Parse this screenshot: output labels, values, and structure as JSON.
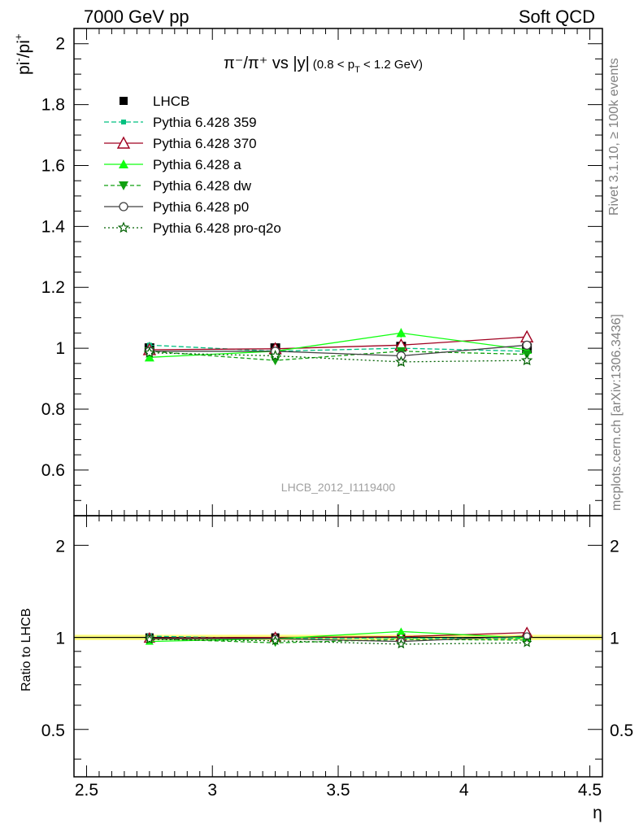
{
  "header": {
    "left": "7000 GeV pp",
    "right": "Soft QCD"
  },
  "side_labels": {
    "rivet": "Rivet 3.1.10, ≥ 100k events",
    "mcplots": "mcplots.cern.ch [arXiv:1306.3436]"
  },
  "watermark": "LHCB_2012_I1119400",
  "title": {
    "main": "π⁻/π⁺ vs |y|",
    "range_open": "(0.8 < p",
    "range_sub": "T",
    "range_close": " < 1.2 GeV)"
  },
  "ylabel": {
    "base1": "pi",
    "sup1": "-",
    "slash": "/pi",
    "sup2": "+"
  },
  "ratio_ylabel": "Ratio to LHCB",
  "xlabel": "η",
  "chart_data": [
    {
      "type": "line",
      "panel": "main",
      "x": [
        2.75,
        3.25,
        3.75,
        4.25
      ],
      "xlim": [
        2.45,
        4.55
      ],
      "ylim": [
        0.45,
        2.05
      ],
      "yticks": [
        0.6,
        0.8,
        1,
        1.2,
        1.4,
        1.6,
        1.8,
        2
      ],
      "ytick_labels": [
        "0.6",
        "0.8",
        "1",
        "1.2",
        "1.4",
        "1.6",
        "1.8",
        "2"
      ],
      "xticks": [
        2.5,
        3,
        3.5,
        4,
        4.5
      ],
      "xtick_labels": [
        "2.5",
        "3",
        "3.5",
        "4",
        "4.5"
      ],
      "series": [
        {
          "name": "LHCB",
          "values": [
            1.0,
            1.0,
            1.005,
            1.0
          ],
          "errors": [
            0.02,
            0.012,
            0.02,
            0.02
          ],
          "color": "#000000",
          "marker": "square",
          "dash": "none"
        },
        {
          "name": "Pythia 6.428 359",
          "values": [
            1.01,
            0.99,
            1.0,
            0.99
          ],
          "errors": [
            0.01,
            0.01,
            0.01,
            0.01
          ],
          "color": "#00c080",
          "marker": "smallsquare",
          "dash": "6,3"
        },
        {
          "name": "Pythia 6.428 370",
          "values": [
            0.995,
            0.998,
            1.01,
            1.037
          ],
          "errors": [
            0.01,
            0.01,
            0.012,
            0.015
          ],
          "color": "#a00020",
          "marker": "triangle-open",
          "dash": "none"
        },
        {
          "name": "Pythia 6.428 a",
          "values": [
            0.97,
            0.99,
            1.05,
            0.995
          ],
          "errors": [
            0.012,
            0.01,
            0.015,
            0.012
          ],
          "color": "#10ff10",
          "marker": "triangle",
          "dash": "none"
        },
        {
          "name": "Pythia 6.428 dw",
          "values": [
            0.99,
            0.96,
            0.99,
            0.98
          ],
          "errors": [
            0.012,
            0.012,
            0.012,
            0.012
          ],
          "color": "#10a010",
          "marker": "triangle-down",
          "dash": "5,3"
        },
        {
          "name": "Pythia 6.428 p0",
          "values": [
            0.99,
            0.99,
            0.975,
            1.01
          ],
          "errors": [
            0.01,
            0.01,
            0.01,
            0.01
          ],
          "color": "#404040",
          "marker": "circle-open",
          "dash": "none"
        },
        {
          "name": "Pythia 6.428 pro-q2o",
          "values": [
            0.985,
            0.975,
            0.955,
            0.96
          ],
          "errors": [
            0.01,
            0.01,
            0.012,
            0.012
          ],
          "color": "#006000",
          "marker": "star-open",
          "dash": "2,3"
        }
      ]
    },
    {
      "type": "line",
      "panel": "ratio",
      "x": [
        2.75,
        3.25,
        3.75,
        4.25
      ],
      "xlim": [
        2.45,
        4.55
      ],
      "ylim": [
        0.35,
        2.5
      ],
      "yscale": "log",
      "yticks": [
        0.5,
        1,
        2
      ],
      "ytick_labels": [
        "0.5",
        "1",
        "2"
      ],
      "band_color": "#ffff80",
      "series": [
        {
          "name": "Pythia 6.428 359",
          "values": [
            1.01,
            0.99,
            0.995,
            0.99
          ]
        },
        {
          "name": "Pythia 6.428 370",
          "values": [
            0.995,
            1.0,
            1.005,
            1.037
          ]
        },
        {
          "name": "Pythia 6.428 a",
          "values": [
            0.97,
            0.99,
            1.045,
            0.995
          ]
        },
        {
          "name": "Pythia 6.428 dw",
          "values": [
            0.99,
            0.96,
            0.985,
            0.98
          ]
        },
        {
          "name": "Pythia 6.428 p0",
          "values": [
            0.99,
            0.99,
            0.97,
            1.01
          ]
        },
        {
          "name": "Pythia 6.428 pro-q2o",
          "values": [
            0.985,
            0.975,
            0.95,
            0.96
          ]
        }
      ]
    }
  ]
}
